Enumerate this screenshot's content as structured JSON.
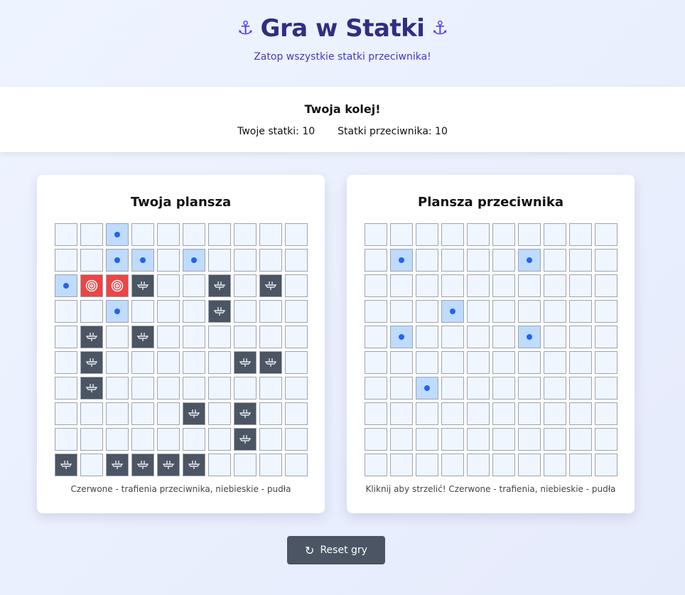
{
  "header": {
    "title": "Gra w Statki",
    "subtitle": "Zatop wszystkie statki przeciwnika!",
    "icon": "anchor-icon"
  },
  "status": {
    "turn": "Twoja kolej!",
    "player_ships": "Twoje statki: 10",
    "enemy_ships": "Statki przeciwnika: 10"
  },
  "player_board": {
    "title": "Twoja plansza",
    "legend": "Czerwone - trafienia przeciwnika, niebieskie - pudła",
    "rows": [
      "..m.......",
      "..mm.m....",
      "mhhs..s.s.",
      "..m...s...",
      ".s.s......",
      ".s.....ss.",
      ".s........",
      ".....s.s..",
      ".......s..",
      "s.ssss...."
    ]
  },
  "enemy_board": {
    "title": "Plansza przeciwnika",
    "legend": "Kliknij aby strzelić! Czerwone - trafienia, niebieskie - pudła",
    "rows": [
      "..........",
      ".m....m...",
      "..........",
      "...m......",
      ".m....m...",
      "..........",
      "..m.......",
      "..........",
      "..........",
      ".........."
    ]
  },
  "cell_key": {
    ".": "empty",
    "m": "miss",
    "h": "hit",
    "s": "ship"
  },
  "colors": {
    "hit": "#ef4444",
    "miss": "#bfdbfe",
    "ship": "#4b5563",
    "empty": "#eff6ff"
  },
  "reset_label": "Reset gry"
}
